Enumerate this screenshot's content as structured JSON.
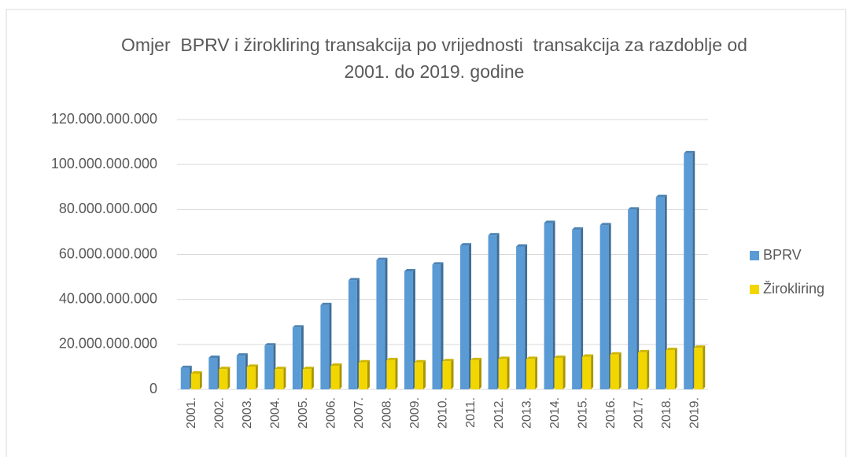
{
  "chart_data": {
    "type": "bar",
    "title": "Omjer  BPRV i žirokliring transakcija po vrijednosti  transakcija za razdoblje od 2001. do 2019. godine",
    "categories": [
      "2001.",
      "2002.",
      "2003.",
      "2004.",
      "2005.",
      "2006.",
      "2007.",
      "2008.",
      "2009.",
      "2010.",
      "2011.",
      "2012.",
      "2013.",
      "2014.",
      "2015.",
      "2016.",
      "2017.",
      "2018.",
      "2019."
    ],
    "series": [
      {
        "name": "BPRV",
        "color": "#5b9bd5",
        "values": [
          9500000000,
          14000000000,
          15000000000,
          19500000000,
          27500000000,
          37500000000,
          48500000000,
          57500000000,
          52500000000,
          55500000000,
          64000000000,
          68500000000,
          63500000000,
          74000000000,
          71000000000,
          73000000000,
          80000000000,
          85500000000,
          105000000000
        ]
      },
      {
        "name": "Žirokliring",
        "color": "#f2d600",
        "values": [
          7000000000,
          9000000000,
          10000000000,
          9000000000,
          9000000000,
          10500000000,
          12000000000,
          13000000000,
          12000000000,
          12500000000,
          13000000000,
          13500000000,
          13500000000,
          14000000000,
          14500000000,
          15500000000,
          16500000000,
          17500000000,
          18500000000
        ]
      }
    ],
    "ylim": [
      0,
      120000000000
    ],
    "yticks": [
      0,
      {
        "value": 20000000000,
        "label": "20.000.000.000"
      },
      {
        "value": 40000000000,
        "label": "40.000.000.000"
      },
      {
        "value": 60000000000,
        "label": "60.000.000.000"
      },
      {
        "value": 80000000000,
        "label": "80.000.000.000"
      },
      {
        "value": 100000000000,
        "label": "100.000.000.000"
      },
      {
        "value": 120000000000,
        "label": "120.000.000.000"
      }
    ],
    "grid": true,
    "legend": "right"
  }
}
